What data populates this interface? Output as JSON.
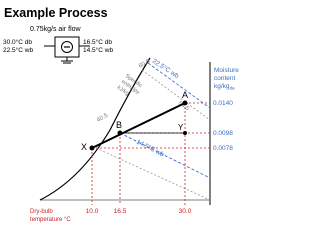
{
  "title": "Example Process",
  "flow": "0.75kg/s air flow",
  "inlet": {
    "db": "30.0°C db",
    "wb": "22.5°C wb"
  },
  "outlet": {
    "db": "16.5°C db",
    "wb": "14.5°C wb"
  },
  "axis": {
    "moisture_label": [
      "Moisture",
      "content",
      "kg/kg"
    ],
    "moisture_sub": "da",
    "moisture_ticks": [
      "0.0140",
      "0.0098",
      "0.0078"
    ],
    "temp_label": [
      "Dry-bulb",
      "temperature °C"
    ],
    "temp_ticks": [
      "10.0",
      "16.5",
      "30.0"
    ]
  },
  "enthalpy": {
    "label": [
      "Specific",
      "enthalpy",
      "kJ/kg"
    ],
    "values": [
      "60.0",
      "54.5",
      "40.5"
    ]
  },
  "wet_bulb": [
    "22.5°C wb",
    "14.5°C wb"
  ],
  "points": [
    "A",
    "B",
    "X",
    "Y"
  ]
}
